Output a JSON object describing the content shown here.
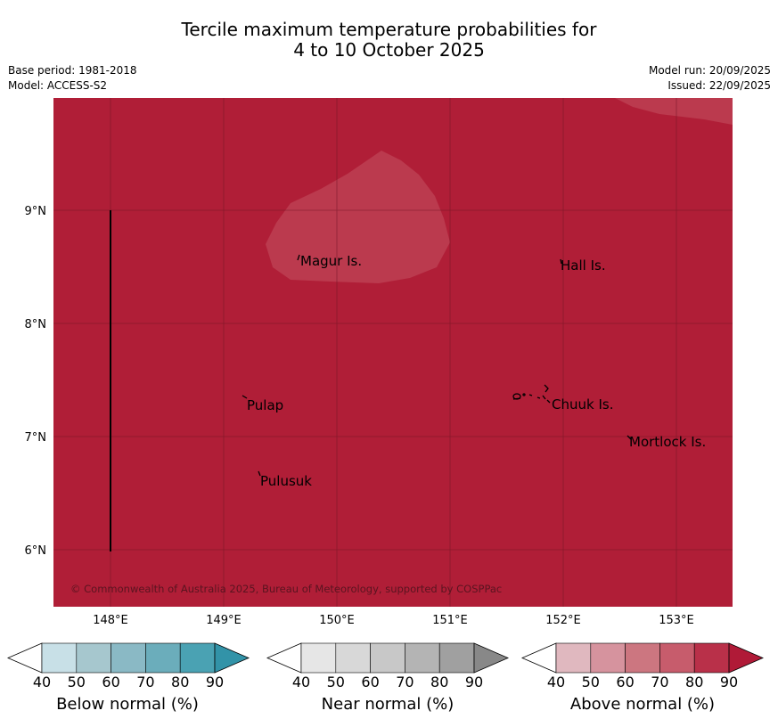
{
  "title": {
    "line1": "Tercile maximum temperature probabilities for",
    "line2": "4 to 10 October 2025"
  },
  "meta_left": {
    "base_period": "Base period: 1981-2018",
    "model": "Model: ACCESS-S2"
  },
  "meta_right": {
    "model_run": "Model run: 20/09/2025",
    "issued": "Issued: 22/09/2025"
  },
  "map": {
    "fill_color": "#b01e37",
    "light_patch_color": "#bb3a4e",
    "lat_labels": [
      "9°N",
      "8°N",
      "7°N",
      "6°N"
    ],
    "lon_labels": [
      "148°E",
      "149°E",
      "150°E",
      "151°E",
      "152°E",
      "153°E"
    ],
    "places": [
      "Magur Is.",
      "Hall Is.",
      "Pulap",
      "Chuuk Is.",
      "Mortlock Is.",
      "Pulusuk"
    ],
    "copyright": "© Commonwealth of Australia 2025, Bureau of Meteorology, supported by COSPPac"
  },
  "colorbars": [
    {
      "label": "Below normal (%)",
      "ticks": [
        "40",
        "50",
        "60",
        "70",
        "80",
        "90"
      ],
      "colors": [
        "#ffffff",
        "#c8e0e7",
        "#a6c7ce",
        "#8ab9c5",
        "#6badbb",
        "#4aa2b3",
        "#3293a8"
      ]
    },
    {
      "label": "Near normal (%)",
      "ticks": [
        "40",
        "50",
        "60",
        "70",
        "80",
        "90"
      ],
      "colors": [
        "#ffffff",
        "#e6e6e6",
        "#d8d8d8",
        "#c8c8c8",
        "#b4b4b4",
        "#a0a0a0",
        "#888888"
      ]
    },
    {
      "label": "Above normal (%)",
      "ticks": [
        "40",
        "50",
        "60",
        "70",
        "80",
        "90"
      ],
      "colors": [
        "#ffffff",
        "#e0b8bf",
        "#d6939e",
        "#cc7680",
        "#c75c6c",
        "#b93049",
        "#b01a37"
      ]
    }
  ]
}
